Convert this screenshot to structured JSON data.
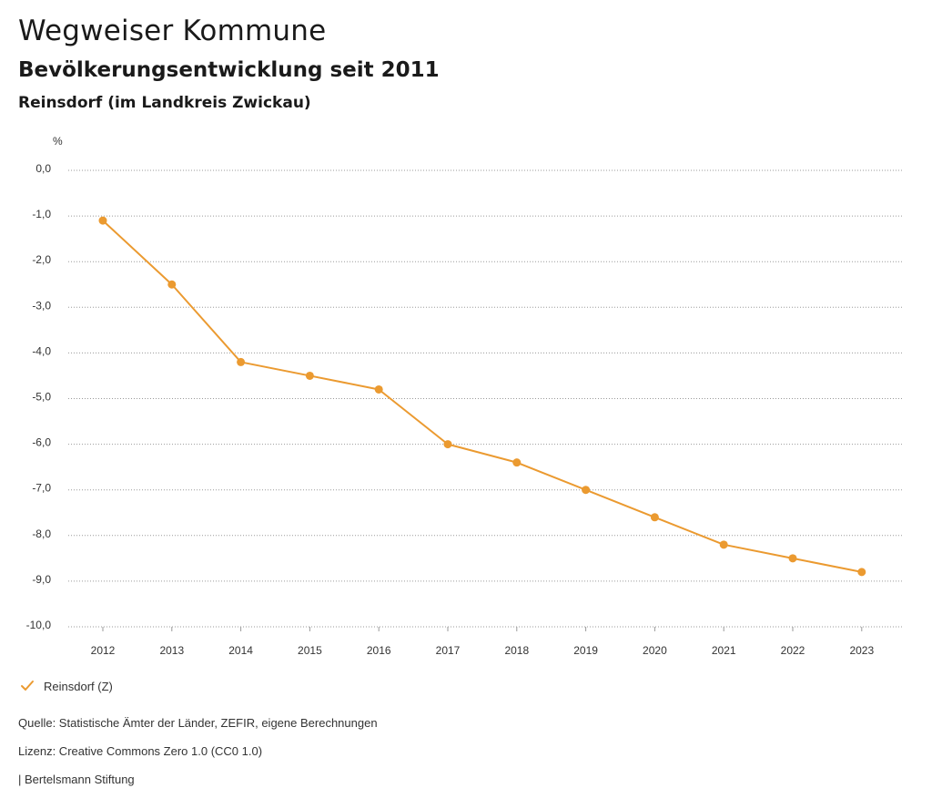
{
  "header": {
    "title": "Wegweiser Kommune",
    "subtitle": "Bevölkerungsentwicklung seit 2011",
    "region": "Reinsdorf (im Landkreis Zwickau)"
  },
  "chart_data": {
    "type": "line",
    "ylabel": "%",
    "xlabel": "",
    "ylim": [
      -10,
      0
    ],
    "yticks": [
      0,
      -1,
      -2,
      -3,
      -4,
      -5,
      -6,
      -7,
      -8,
      -9,
      -10
    ],
    "ytick_labels": [
      "0,0",
      "-1,0",
      "-2,0",
      "-3,0",
      "-4,0",
      "-5,0",
      "-6,0",
      "-7,0",
      "-8,0",
      "-9,0",
      "-10,0"
    ],
    "categories": [
      "2012",
      "2013",
      "2014",
      "2015",
      "2016",
      "2017",
      "2018",
      "2019",
      "2020",
      "2021",
      "2022",
      "2023"
    ],
    "grid": "horizontal dotted",
    "series": [
      {
        "name": "Reinsdorf (Z)",
        "color": "#eb9a30",
        "values": [
          -1.1,
          -2.5,
          -4.2,
          -4.5,
          -4.8,
          -6.0,
          -6.4,
          -7.0,
          -7.6,
          -8.2,
          -8.5,
          -8.8
        ]
      }
    ]
  },
  "legend": {
    "label": "Reinsdorf (Z)",
    "icon": "checkmark-icon",
    "color": "#eb9a30"
  },
  "footer": {
    "source": "Quelle: Statistische Ämter der Länder, ZEFIR, eigene Berechnungen",
    "license": "Lizenz: Creative Commons Zero 1.0 (CC0 1.0)",
    "publisher": "| Bertelsmann Stiftung"
  }
}
